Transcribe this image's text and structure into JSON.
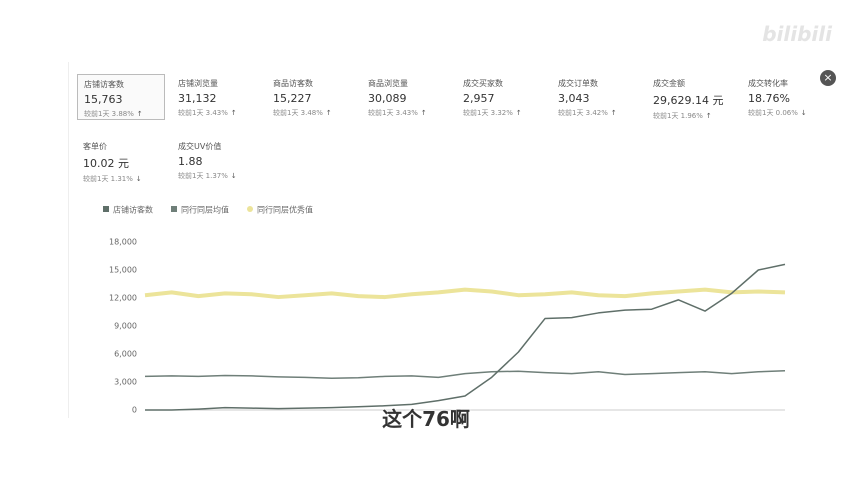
{
  "metrics": [
    {
      "label": "店铺访客数",
      "value": "15,763",
      "compare": "较前1天 3.88%",
      "trend": "↑"
    },
    {
      "label": "店铺浏览量",
      "value": "31,132",
      "compare": "较前1天 3.43%",
      "trend": "↑"
    },
    {
      "label": "商品访客数",
      "value": "15,227",
      "compare": "较前1天 3.48%",
      "trend": "↑"
    },
    {
      "label": "商品浏览量",
      "value": "30,089",
      "compare": "较前1天 3.43%",
      "trend": "↑"
    },
    {
      "label": "成交买家数",
      "value": "2,957",
      "compare": "较前1天 3.32%",
      "trend": "↑"
    },
    {
      "label": "成交订单数",
      "value": "3,043",
      "compare": "较前1天 3.42%",
      "trend": "↑"
    },
    {
      "label": "成交金额",
      "value": "29,629.14 元",
      "compare": "较前1天 1.96%",
      "trend": "↑"
    },
    {
      "label": "成交转化率",
      "value": "18.76%",
      "compare": "较前1天 0.06%",
      "trend": "↓"
    },
    {
      "label": "客单价",
      "value": "10.02 元",
      "compare": "较前1天 1.31%",
      "trend": "↓"
    },
    {
      "label": "成交UV价值",
      "value": "1.88",
      "compare": "较前1天 1.37%",
      "trend": "↓"
    }
  ],
  "chart_data": {
    "type": "line",
    "categories": [
      null,
      null,
      null,
      null,
      null,
      null,
      null,
      null,
      null,
      null,
      null,
      null,
      null,
      null,
      null,
      null,
      null,
      null,
      null,
      null,
      null,
      null,
      null,
      null,
      null
    ],
    "series": [
      {
        "name": "店铺访客数",
        "color": "#5f6f69",
        "values": [
          0,
          0,
          100,
          250,
          200,
          150,
          200,
          250,
          350,
          450,
          600,
          1000,
          1500,
          3500,
          6200,
          9800,
          9900,
          10400,
          10700,
          10800,
          11800,
          10600,
          12500,
          15000,
          15600
        ]
      },
      {
        "name": "同行同层均值",
        "color": "#6f7f79",
        "values": [
          3600,
          3650,
          3600,
          3700,
          3650,
          3550,
          3500,
          3400,
          3450,
          3600,
          3650,
          3500,
          3900,
          4100,
          4150,
          4000,
          3900,
          4100,
          3800,
          3900,
          4000,
          4100,
          3900,
          4100,
          4200
        ]
      },
      {
        "name": "同行同层优秀值",
        "color": "#ece49a",
        "values": [
          12300,
          12600,
          12200,
          12500,
          12400,
          12100,
          12300,
          12500,
          12200,
          12100,
          12400,
          12600,
          12900,
          12700,
          12300,
          12400,
          12600,
          12300,
          12200,
          12500,
          12700,
          12900,
          12600,
          12700,
          12600
        ]
      }
    ],
    "ylim": [
      0,
      18000
    ],
    "yticks": [
      0,
      {
        "value": 3000,
        "label": "3,000"
      },
      {
        "value": 6000,
        "label": "6,000"
      },
      {
        "value": 9000,
        "label": "9,000"
      },
      {
        "value": 12000,
        "label": "12,000"
      },
      {
        "value": 15000,
        "label": "15,000"
      },
      {
        "value": 18000,
        "label": "18,000"
      }
    ]
  },
  "caption": "这个76啊",
  "watermark": "bilibili"
}
